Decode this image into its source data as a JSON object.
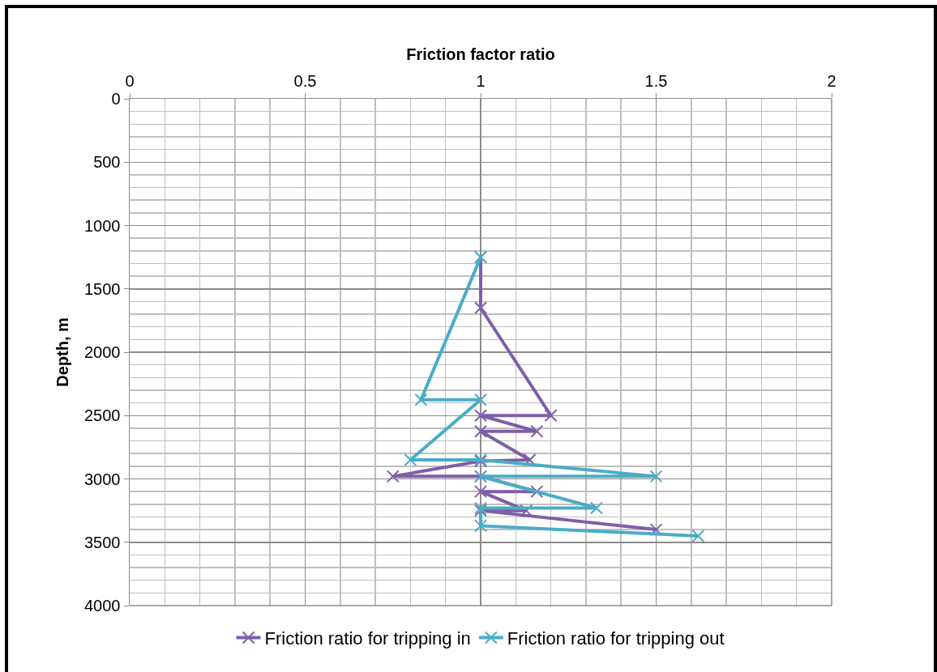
{
  "chart_data": {
    "type": "line",
    "xlabel": "Friction factor ratio",
    "ylabel": "Depth, m",
    "xlim": [
      0,
      2
    ],
    "xticks": [
      0,
      0.5,
      1,
      1.5,
      2
    ],
    "ylim": [
      4000,
      0
    ],
    "yticks": [
      0,
      500,
      1000,
      1500,
      2000,
      2500,
      3000,
      3500,
      4000
    ],
    "grid": true,
    "legend": "bottom",
    "line_style": "solid",
    "series": [
      {
        "name": "Friction ratio for tripping in",
        "color": "#7f5ea8",
        "marker": "cross",
        "x": [
          1,
          1,
          1.2,
          1,
          1.16,
          1,
          1.14,
          1,
          0.75,
          1,
          1.16,
          1,
          1.13,
          1,
          1.5
        ],
        "values": [
          1250,
          1650,
          2500,
          2500,
          2625,
          2625,
          2850,
          2860,
          2980,
          2980,
          3100,
          3100,
          3250,
          3250,
          3400
        ]
      },
      {
        "name": "Friction ratio for tripping out",
        "color": "#4bacc6",
        "marker": "cross",
        "x": [
          1,
          0.83,
          1,
          0.8,
          1,
          1.5,
          1,
          1.33,
          1,
          1,
          1.62
        ],
        "values": [
          1250,
          2375,
          2375,
          2850,
          2850,
          2980,
          2980,
          3230,
          3230,
          3370,
          3450
        ]
      }
    ]
  }
}
